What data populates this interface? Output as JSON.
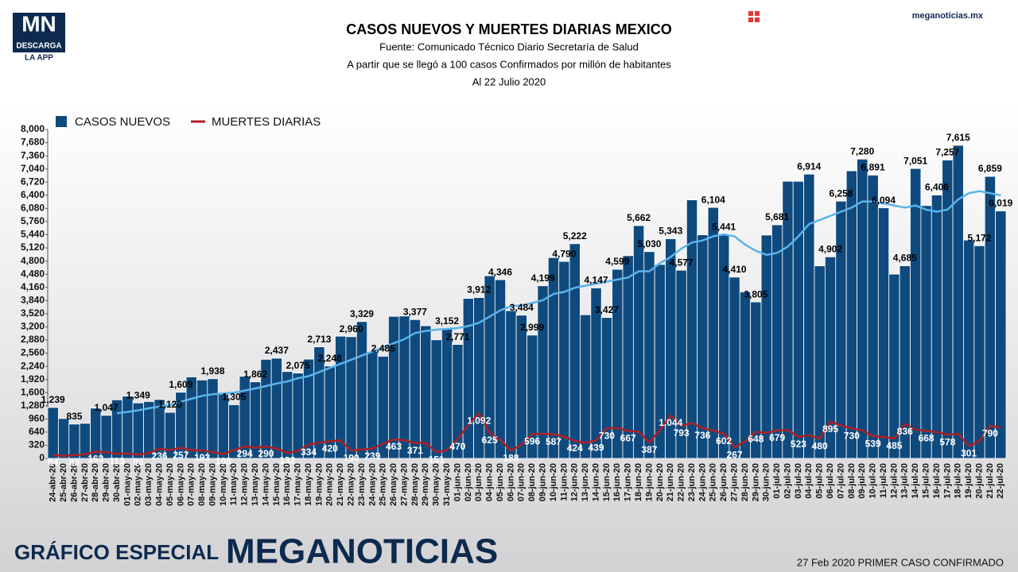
{
  "header": {
    "logo_main": "MN",
    "logo_sub": "DESCARGA",
    "logo_sub2": "LA APP",
    "site": "meganoticias.mx"
  },
  "footer": {
    "left": "GRÁFICO ESPECIAL",
    "brand": "MEGANOTICIAS",
    "right": "27 Feb 2020 PRIMER CASO CONFIRMADO"
  },
  "chart_data": {
    "type": "bar",
    "title": "CASOS NUEVOS Y MUERTES DIARIAS MEXICO",
    "subtitle": [
      "Fuente: Comunicado Técnico Diario Secretaría de Salud",
      "A partir que se llegó a 100 casos Confirmados por millón de habitantes",
      "Al 22 Julio 2020"
    ],
    "categories": [
      "24-abr-20",
      "25-abr-20",
      "26-abr-20",
      "27-abr-20",
      "28-abr-20",
      "29-abr-20",
      "30-abr-20",
      "01-may-20",
      "02-may-20",
      "03-may-20",
      "04-may-20",
      "05-may-20",
      "06-may-20",
      "07-may-20",
      "08-may-20",
      "09-may-20",
      "10-may-20",
      "11-may-20",
      "12-may-20",
      "13-may-20",
      "14-may-20",
      "15-may-20",
      "16-may-20",
      "17-may-20",
      "18-may-20",
      "19-may-20",
      "20-may-20",
      "21-may-20",
      "22-may-20",
      "23-may-20",
      "24-may-20",
      "25-may-20",
      "26-may-20",
      "27-may-20",
      "28-may-20",
      "29-may-20",
      "30-may-20",
      "31-may-20",
      "01-jun-20",
      "02-jun-20",
      "03-jun-20",
      "04-jun-20",
      "05-jun-20",
      "06-jun-20",
      "07-jun-20",
      "08-jun-20",
      "09-jun-20",
      "10-jun-20",
      "11-jun-20",
      "12-jun-20",
      "13-jun-20",
      "14-jun-20",
      "15-jun-20",
      "16-jun-20",
      "17-jun-20",
      "18-jun-20",
      "19-jun-20",
      "20-jun-20",
      "21-jun-20",
      "22-jun-20",
      "23-jun-20",
      "24-jun-20",
      "25-jun-20",
      "26-jun-20",
      "27-jun-20",
      "28-jun-20",
      "29-jun-20",
      "30-jun-20",
      "01-jul-20",
      "02-jul-20",
      "03-jul-20",
      "04-jul-20",
      "05-jul-20",
      "06-jul-20",
      "07-jul-20",
      "08-jul-20",
      "09-jul-20",
      "10-jul-20",
      "11-jul-20",
      "12-jul-20",
      "13-jul-20",
      "14-jul-20",
      "15-jul-20",
      "16-jul-20",
      "17-jul-20",
      "18-jul-20",
      "19-jul-20",
      "20-jul-20",
      "21-jul-20",
      "22-jul-20"
    ],
    "series": [
      {
        "name": "CASOS NUEVOS",
        "type": "bar",
        "color": "#0f4a7e",
        "values": [
          1239,
          970,
          835,
          852,
          1223,
          1047,
          1425,
          1515,
          1349,
          1383,
          1434,
          1120,
          1609,
          1982,
          1906,
          1938,
          1562,
          1305,
          1997,
          1862,
          2409,
          2437,
          2112,
          2075,
          2414,
          2713,
          2248,
          2973,
          2960,
          3329,
          2600,
          2485,
          3455,
          3463,
          3377,
          3227,
          2885,
          3152,
          2771,
          3891,
          3912,
          4442,
          4346,
          3593,
          3484,
          2999,
          4199,
          4883,
          4790,
          5222,
          3494,
          4147,
          3427,
          4599,
          4930,
          5662,
          5030,
          4717,
          5343,
          4577,
          6288,
          5437,
          6104,
          5441,
          4410,
          4050,
          3805,
          5432,
          5681,
          6741,
          6740,
          6914,
          4683,
          4902,
          6258,
          6995,
          7280,
          6891,
          6094,
          4482,
          4685,
          7051,
          6149,
          6406,
          7257,
          7615,
          5311,
          5172,
          6859,
          6019
        ],
        "value_labels": [
          "1,239",
          null,
          "835",
          null,
          null,
          "1,047",
          null,
          null,
          "1,349",
          null,
          null,
          "1,120",
          "1,609",
          null,
          null,
          "1,938",
          null,
          "1,305",
          null,
          "1,862",
          null,
          "2,437",
          null,
          "2,075",
          null,
          "2,713",
          "2,248",
          null,
          "2,960",
          "3,329",
          null,
          "2,485",
          null,
          null,
          "3,377",
          null,
          null,
          "3,152",
          "2,771",
          null,
          "3,912",
          null,
          "4,346",
          null,
          "3,484",
          "2,999",
          "4,199",
          null,
          "4,790",
          "5,222",
          null,
          "4,147",
          "3,427",
          "4,599",
          null,
          "5,662",
          "5,030",
          null,
          "5,343",
          "4,577",
          null,
          null,
          "6,104",
          "5,441",
          "4,410",
          null,
          "3,805",
          null,
          "5,681",
          null,
          null,
          "6,914",
          null,
          "4,902",
          "6,258",
          null,
          "7,280",
          "6,891",
          "6,094",
          null,
          "4,685",
          "7,051",
          null,
          "6,406",
          "7,257",
          "7,615",
          null,
          "5,172",
          "6,859",
          "6,019"
        ]
      },
      {
        "name": "MUERTES DIARIAS",
        "type": "line",
        "color": "#b01f24",
        "values": [
          84,
          60,
          83,
          100,
          163,
          150,
          113,
          120,
          93,
          130,
          236,
          200,
          257,
          200,
          193,
          150,
          108,
          200,
          294,
          260,
          290,
          240,
          132,
          180,
          334,
          380,
          420,
          440,
          190,
          220,
          239,
          360,
          463,
          440,
          371,
          380,
          151,
          200,
          470,
          820,
          1092,
          625,
          450,
          188,
          340,
          596,
          600,
          587,
          530,
          424,
          380,
          439,
          730,
          740,
          667,
          650,
          387,
          700,
          1044,
          793,
          860,
          736,
          680,
          602,
          267,
          420,
          648,
          620,
          679,
          690,
          523,
          560,
          480,
          895,
          800,
          730,
          680,
          539,
          520,
          485,
          836,
          700,
          668,
          640,
          578,
          600,
          301,
          420,
          790,
          752
        ],
        "value_labels": [
          "84",
          null,
          "83",
          null,
          "163",
          null,
          "113",
          null,
          "93",
          null,
          "236",
          null,
          "257",
          null,
          "193",
          null,
          "108",
          null,
          "294",
          null,
          "290",
          null,
          "132",
          null,
          "334",
          null,
          "420",
          null,
          "190",
          null,
          "239",
          null,
          "463",
          null,
          "371",
          null,
          "151",
          null,
          "470",
          null,
          "1,092",
          "625",
          null,
          "188",
          null,
          "596",
          null,
          "587",
          null,
          "424",
          null,
          "439",
          "730",
          null,
          "667",
          null,
          "387",
          null,
          "1,044",
          "793",
          null,
          "736",
          null,
          "602",
          "267",
          null,
          "648",
          null,
          "679",
          null,
          "523",
          null,
          "480",
          "895",
          null,
          "730",
          null,
          "539",
          null,
          "485",
          "836",
          null,
          "668",
          null,
          "578",
          null,
          "301",
          null,
          "790",
          null
        ]
      },
      {
        "type": "line",
        "color": "#5ab4ec",
        "values": [
          null,
          null,
          null,
          null,
          null,
          null,
          1100,
          1130,
          1170,
          1220,
          1260,
          1300,
          1380,
          1450,
          1520,
          1560,
          1580,
          1600,
          1650,
          1700,
          1760,
          1820,
          1870,
          1950,
          2000,
          2100,
          2200,
          2300,
          2400,
          2500,
          2600,
          2700,
          2800,
          2900,
          3050,
          3100,
          3130,
          3150,
          3170,
          3220,
          3300,
          3450,
          3600,
          3700,
          3720,
          3780,
          3850,
          4000,
          4050,
          4150,
          4200,
          4250,
          4300,
          4350,
          4400,
          4550,
          4550,
          4750,
          4900,
          5100,
          5250,
          5300,
          5400,
          5450,
          5400,
          5200,
          5050,
          4950,
          5000,
          5150,
          5400,
          5700,
          5800,
          5900,
          6000,
          6100,
          6250,
          6250,
          6200,
          6150,
          6100,
          6150,
          6050,
          6000,
          6050,
          6300,
          6450,
          6500,
          6450,
          6400
        ]
      }
    ],
    "ylim": [
      0,
      8000
    ],
    "yticks": [
      0,
      320,
      640,
      960,
      {
        "value": 1280,
        "label": "1,280"
      },
      {
        "value": 1600,
        "label": "1,600"
      },
      {
        "value": 1920,
        "label": "1,920"
      },
      {
        "value": 2240,
        "label": "2,240"
      },
      {
        "value": 2560,
        "label": "2,560"
      },
      {
        "value": 2880,
        "label": "2,880"
      },
      {
        "value": 3200,
        "label": "3,200"
      },
      {
        "value": 3520,
        "label": "3,520"
      },
      {
        "value": 3840,
        "label": "3,840"
      },
      {
        "value": 4160,
        "label": "4,160"
      },
      {
        "value": 4480,
        "label": "4,480"
      },
      {
        "value": 4800,
        "label": "4,800"
      },
      {
        "value": 5120,
        "label": "5,120"
      },
      {
        "value": 5440,
        "label": "5,440"
      },
      {
        "value": 5760,
        "label": "5,760"
      },
      {
        "value": 6080,
        "label": "6,080"
      },
      {
        "value": 6400,
        "label": "6,400"
      },
      {
        "value": 6720,
        "label": "6,720"
      },
      {
        "value": 7040,
        "label": "7,040"
      },
      {
        "value": 7360,
        "label": "7,360"
      },
      {
        "value": 7680,
        "label": "7,680"
      },
      {
        "value": 8000,
        "label": "8,000"
      }
    ],
    "grid": false,
    "legend": "top-left"
  }
}
